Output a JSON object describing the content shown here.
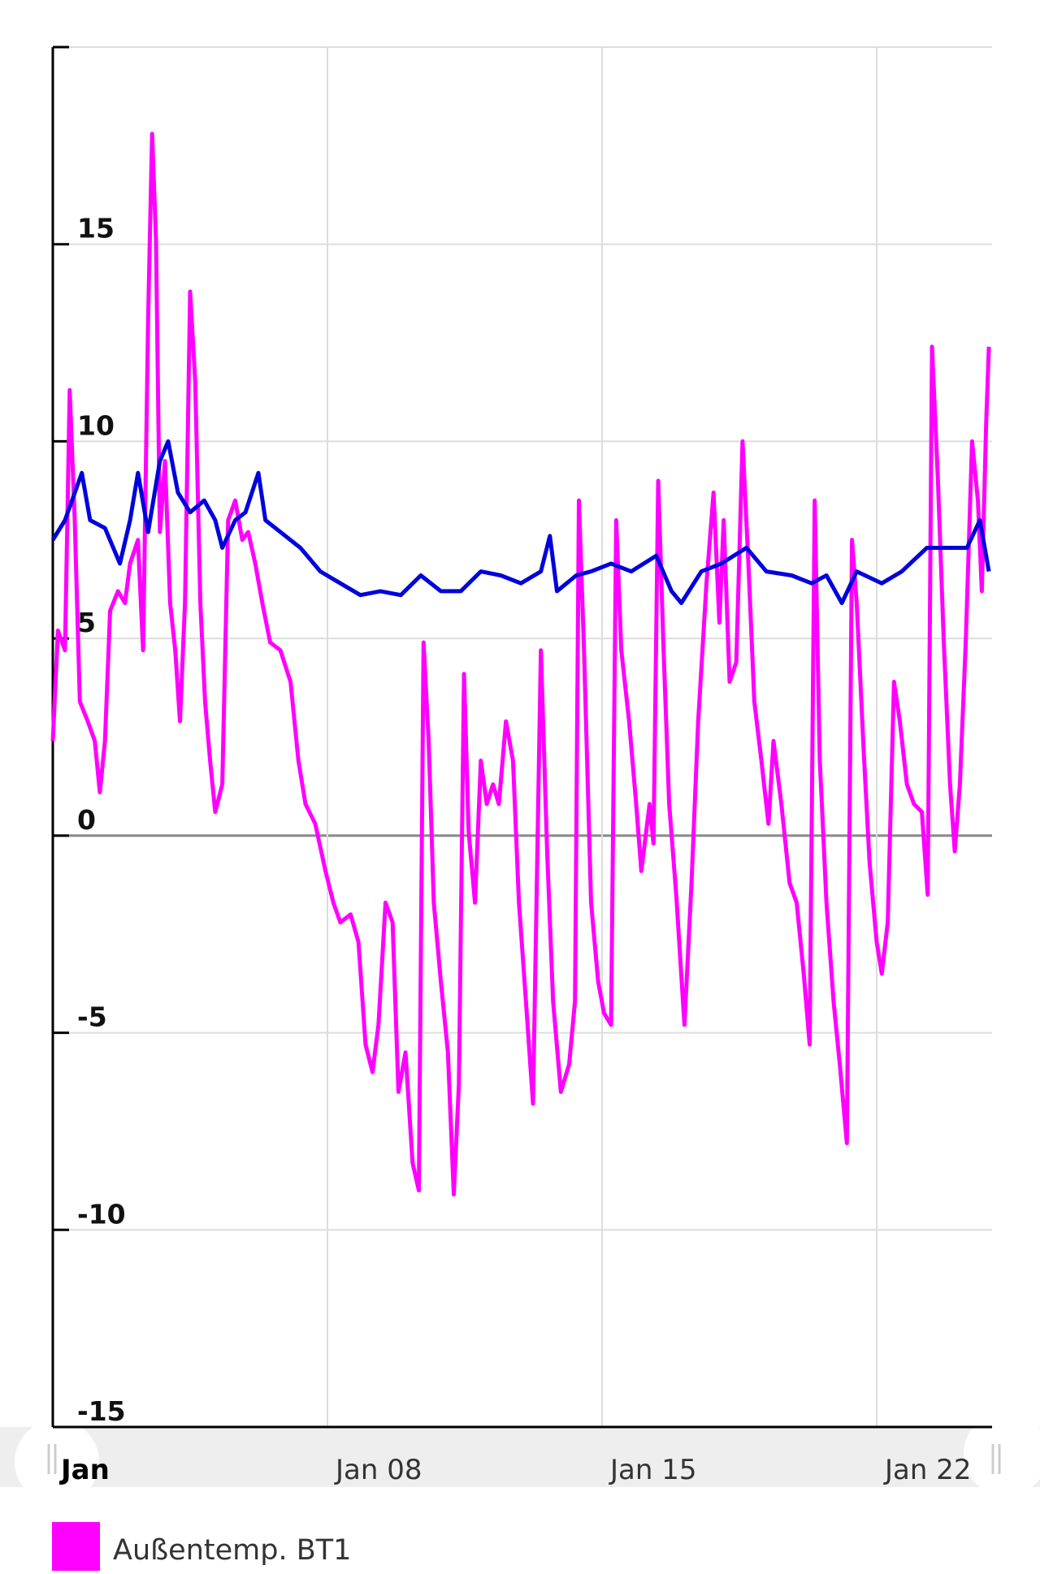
{
  "chart_data": {
    "type": "line",
    "xlim": [
      1,
      24.94
    ],
    "xticks": [
      {
        "value": 1,
        "label": "Jan"
      },
      {
        "value": 8,
        "label": "Jan 08"
      },
      {
        "value": 15,
        "label": "Jan 15"
      },
      {
        "value": 22,
        "label": "Jan 22"
      }
    ],
    "ylim": [
      -15,
      20
    ],
    "yticks": [
      -15,
      -10,
      -5,
      0,
      5,
      10,
      15
    ],
    "grid": true,
    "legend": "bottom-left",
    "series": [
      {
        "name": "Außentemp. BT1",
        "color": "#ff00ff",
        "x": [
          1.0,
          1.13,
          1.31,
          1.43,
          1.56,
          1.69,
          1.89,
          2.07,
          2.2,
          2.33,
          2.46,
          2.66,
          2.84,
          2.97,
          3.17,
          3.3,
          3.43,
          3.53,
          3.63,
          3.73,
          3.86,
          3.99,
          4.12,
          4.24,
          4.37,
          4.5,
          4.63,
          4.76,
          4.88,
          5.01,
          5.14,
          5.32,
          5.47,
          5.65,
          5.83,
          5.98,
          6.16,
          6.34,
          6.54,
          6.8,
          7.06,
          7.26,
          7.44,
          7.69,
          7.95,
          8.15,
          8.33,
          8.59,
          8.79,
          8.97,
          9.15,
          9.3,
          9.48,
          9.66,
          9.81,
          9.99,
          10.17,
          10.33,
          10.45,
          10.58,
          10.71,
          10.89,
          11.07,
          11.22,
          11.35,
          11.48,
          11.6,
          11.76,
          11.91,
          12.06,
          12.22,
          12.37,
          12.55,
          12.73,
          12.88,
          13.06,
          13.24,
          13.44,
          13.6,
          13.75,
          13.95,
          14.16,
          14.31,
          14.41,
          14.54,
          14.72,
          14.9,
          15.05,
          15.23,
          15.36,
          15.49,
          15.69,
          15.87,
          16.0,
          16.21,
          16.31,
          16.43,
          16.56,
          16.71,
          16.89,
          17.1,
          17.28,
          17.45,
          17.66,
          17.84,
          17.99,
          18.1,
          18.25,
          18.42,
          18.58,
          18.73,
          18.88,
          19.06,
          19.24,
          19.37,
          19.57,
          19.78,
          19.96,
          20.14,
          20.29,
          20.42,
          20.55,
          20.72,
          20.9,
          21.06,
          21.24,
          21.37,
          21.49,
          21.67,
          21.82,
          22.0,
          22.13,
          22.28,
          22.44,
          22.59,
          22.77,
          22.95,
          23.15,
          23.3,
          23.41,
          23.56,
          23.71,
          23.87,
          23.99,
          24.12,
          24.27,
          24.43,
          24.58,
          24.68,
          24.79,
          24.86
        ],
        "values": [
          2.4,
          5.2,
          4.7,
          11.3,
          8,
          3.4,
          2.9,
          2.4,
          1.1,
          2.4,
          5.7,
          6.2,
          5.9,
          6.9,
          7.5,
          4.7,
          13.1,
          17.8,
          15.1,
          7.7,
          9.5,
          5.9,
          4.7,
          2.9,
          5.9,
          13.8,
          11.5,
          5.9,
          3.4,
          1.9,
          0.6,
          1.3,
          8,
          8.5,
          7.5,
          7.7,
          6.9,
          5.9,
          4.9,
          4.7,
          3.9,
          1.9,
          0.8,
          0.3,
          -0.9,
          -1.7,
          -2.2,
          -2.0,
          -2.7,
          -5.3,
          -6.0,
          -4.8,
          -1.7,
          -2.2,
          -6.5,
          -5.5,
          -8.3,
          -9.0,
          4.9,
          2.4,
          -1.7,
          -3.7,
          -5.5,
          -9.1,
          -6.3,
          4.1,
          0.1,
          -1.7,
          1.9,
          0.8,
          1.3,
          0.8,
          2.9,
          1.9,
          -1.7,
          -4.2,
          -6.8,
          4.7,
          -0.4,
          -4.2,
          -6.5,
          -5.8,
          -4.2,
          8.5,
          4.7,
          -1.7,
          -3.7,
          -4.5,
          -4.8,
          8,
          4.7,
          2.9,
          0.8,
          -0.9,
          0.8,
          -0.2,
          9,
          4.9,
          0.8,
          -1.5,
          -4.8,
          -1.2,
          2.9,
          6.4,
          8.7,
          5.4,
          8,
          3.9,
          4.4,
          10,
          6.9,
          3.4,
          1.9,
          0.3,
          2.4,
          0.8,
          -1.2,
          -1.7,
          -3.5,
          -5.3,
          8.5,
          1.9,
          -1.7,
          -4.2,
          -5.8,
          -7.8,
          7.5,
          5.9,
          2.1,
          -0.7,
          -2.7,
          -3.5,
          -2.2,
          3.9,
          2.9,
          1.3,
          0.8,
          0.6,
          -1.5,
          12.4,
          9,
          4.9,
          1.3,
          -0.4,
          1.3,
          4.9,
          10,
          8.5,
          6.2,
          10.5,
          12.4
        ]
      },
      {
        "color": "#0000dd",
        "x": [
          1.0,
          1.31,
          1.74,
          1.95,
          2.33,
          2.71,
          2.97,
          3.17,
          3.43,
          3.73,
          3.94,
          4.19,
          4.5,
          4.86,
          5.14,
          5.32,
          5.65,
          5.91,
          6.24,
          6.42,
          6.8,
          7.31,
          7.82,
          8.33,
          8.84,
          9.35,
          9.87,
          10.38,
          10.89,
          11.4,
          11.91,
          12.42,
          12.93,
          13.44,
          13.67,
          13.85,
          14.34,
          14.72,
          15.23,
          15.74,
          16.38,
          16.77,
          17.02,
          17.53,
          18.04,
          18.68,
          19.19,
          19.83,
          20.34,
          20.72,
          21.11,
          21.49,
          22.13,
          22.64,
          23.28,
          23.79,
          24.3,
          24.63,
          24.86
        ],
        "values": [
          7.5,
          8,
          9.2,
          8,
          7.8,
          6.9,
          8,
          9.2,
          7.7,
          9.5,
          10,
          8.7,
          8.2,
          8.5,
          8,
          7.3,
          8,
          8.2,
          9.2,
          8,
          7.7,
          7.3,
          6.7,
          6.4,
          6.1,
          6.2,
          6.1,
          6.6,
          6.2,
          6.2,
          6.7,
          6.6,
          6.4,
          6.7,
          7.6,
          6.2,
          6.6,
          6.7,
          6.9,
          6.7,
          7.1,
          6.2,
          5.9,
          6.7,
          6.9,
          7.3,
          6.7,
          6.6,
          6.4,
          6.6,
          5.9,
          6.7,
          6.4,
          6.7,
          7.3,
          7.3,
          7.3,
          8,
          6.7
        ]
      }
    ]
  }
}
